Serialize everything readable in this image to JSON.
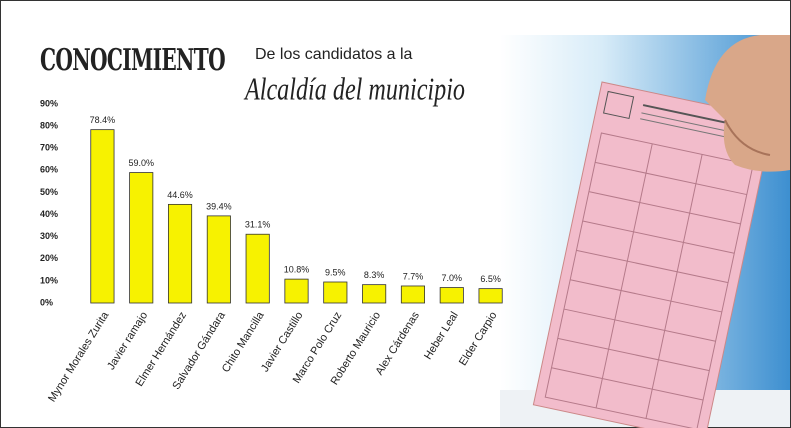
{
  "chart_data": {
    "type": "bar",
    "title": "CONOCIMIENTO",
    "subtitle": "De los candidatos a la",
    "subtitle2": "Alcaldía del municipio",
    "categories": [
      "Mynor Morales Zurita",
      "Javier ramajo",
      "Elmer Hernández",
      "Salvador Gándara",
      "Chito Mancilla",
      "Javier Castillo",
      "Marco Polo Cruz",
      "Roberto Mauricio",
      "Alex Cárdenas",
      "Heber Leal",
      "Elder Carpio"
    ],
    "values": [
      78.4,
      59.0,
      44.6,
      39.4,
      31.1,
      10.8,
      9.5,
      8.3,
      7.7,
      7.0,
      6.5
    ],
    "value_labels": [
      "78.4%",
      "59.0%",
      "44.6%",
      "39.4%",
      "31.1%",
      "10.8%",
      "9.5%",
      "8.3%",
      "7.7%",
      "7.0%",
      "6.5%"
    ],
    "color": "#f7f200",
    "ylim": [
      0,
      90
    ],
    "yticks": [
      {
        "value": 0,
        "label": "0%"
      },
      {
        "value": 10,
        "label": "10%"
      },
      {
        "value": 20,
        "label": "20%"
      },
      {
        "value": 30,
        "label": "30%"
      },
      {
        "value": 40,
        "label": "40%"
      },
      {
        "value": 50,
        "label": "50%"
      },
      {
        "value": 60,
        "label": "60%"
      },
      {
        "value": 70,
        "label": "70%"
      },
      {
        "value": 80,
        "label": "80%"
      },
      {
        "value": 90,
        "label": "90%"
      }
    ],
    "grid": false
  }
}
